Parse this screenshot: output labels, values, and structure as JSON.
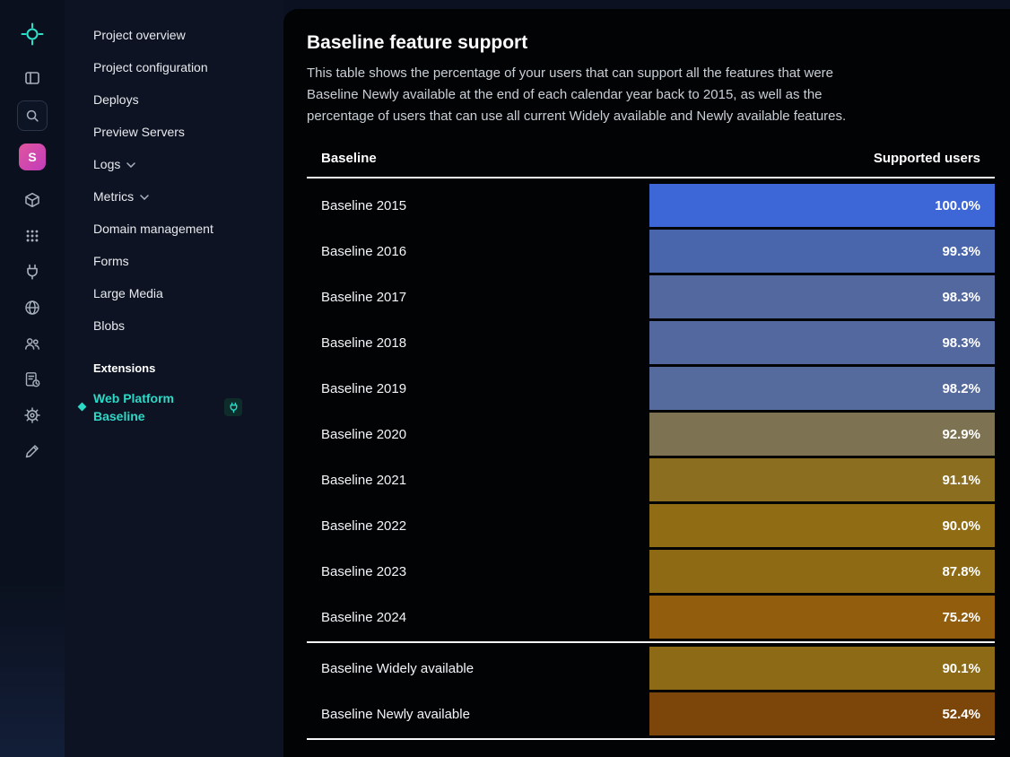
{
  "rail": {
    "avatar_letter": "S"
  },
  "sidebar": {
    "items": [
      {
        "label": "Project overview",
        "chevron": false
      },
      {
        "label": "Project configuration",
        "chevron": false
      },
      {
        "label": "Deploys",
        "chevron": false
      },
      {
        "label": "Preview Servers",
        "chevron": false
      },
      {
        "label": "Logs",
        "chevron": true
      },
      {
        "label": "Metrics",
        "chevron": true
      },
      {
        "label": "Domain management",
        "chevron": false
      },
      {
        "label": "Forms",
        "chevron": false
      },
      {
        "label": "Large Media",
        "chevron": false
      },
      {
        "label": "Blobs",
        "chevron": false
      }
    ],
    "extensions_heading": "Extensions",
    "extension_label": "Web Platform Baseline"
  },
  "main": {
    "title": "Baseline feature support",
    "description": "This table shows the percentage of your users that can support all the features that were Baseline Newly available at the end of each calendar year back to 2015, as well as the percentage of users that can use all current Widely available and Newly available features.",
    "table": {
      "headers": [
        "Baseline",
        "Supported users"
      ],
      "rows": [
        {
          "label": "Baseline 2015",
          "value": "100.0%",
          "color": "#3d67d6"
        },
        {
          "label": "Baseline 2016",
          "value": "99.3%",
          "color": "#4966ad"
        },
        {
          "label": "Baseline 2017",
          "value": "98.3%",
          "color": "#53689e"
        },
        {
          "label": "Baseline 2018",
          "value": "98.3%",
          "color": "#53689e"
        },
        {
          "label": "Baseline 2019",
          "value": "98.2%",
          "color": "#556a9d"
        },
        {
          "label": "Baseline 2020",
          "value": "92.9%",
          "color": "#7d7251"
        },
        {
          "label": "Baseline 2021",
          "value": "91.1%",
          "color": "#8b6e1f"
        },
        {
          "label": "Baseline 2022",
          "value": "90.0%",
          "color": "#906d14"
        },
        {
          "label": "Baseline 2023",
          "value": "87.8%",
          "color": "#8d6a13"
        },
        {
          "label": "Baseline 2024",
          "value": "75.2%",
          "color": "#925d0c"
        },
        {
          "label": "Baseline Widely available",
          "value": "90.1%",
          "color": "#8d6b16"
        },
        {
          "label": "Baseline Newly available",
          "value": "52.4%",
          "color": "#7c4509"
        }
      ],
      "summary_start_index": 10
    }
  }
}
